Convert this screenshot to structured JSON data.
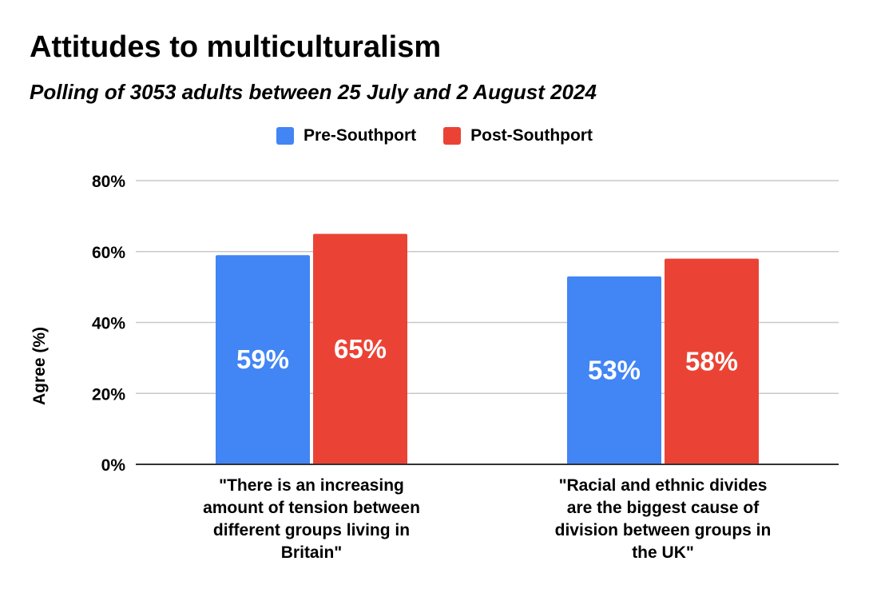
{
  "colors": {
    "pre": "#4285f4",
    "post": "#ea4335",
    "grid": "#c8c8c8",
    "axis": "#333333"
  },
  "chart_data": {
    "type": "bar",
    "title": "Attitudes to multiculturalism",
    "subtitle": "Polling of 3053 adults between 25 July and 2 August 2024",
    "xlabel": "",
    "ylabel": "Agree (%)",
    "ylim": [
      0,
      80
    ],
    "yticks": [
      0,
      20,
      40,
      60,
      80
    ],
    "ytick_labels": [
      "0%",
      "20%",
      "40%",
      "60%",
      "80%"
    ],
    "legend_position": "top-center",
    "grid": true,
    "categories": [
      "\"There is an increasing amount of tension between different groups living in Britain\"",
      "\"Racial and ethnic divides are the biggest cause of division between groups in the UK\""
    ],
    "category_lines": [
      [
        "\"There is an increasing",
        "amount of tension between",
        "different groups living in",
        "Britain\""
      ],
      [
        "\"Racial and ethnic divides",
        "are the biggest cause of",
        "division between groups in",
        "the UK\""
      ]
    ],
    "series": [
      {
        "name": "Pre-Southport",
        "values": [
          59,
          53
        ],
        "labels": [
          "59%",
          "53%"
        ]
      },
      {
        "name": "Post-Southport",
        "values": [
          65,
          58
        ],
        "labels": [
          "65%",
          "58%"
        ]
      }
    ]
  }
}
